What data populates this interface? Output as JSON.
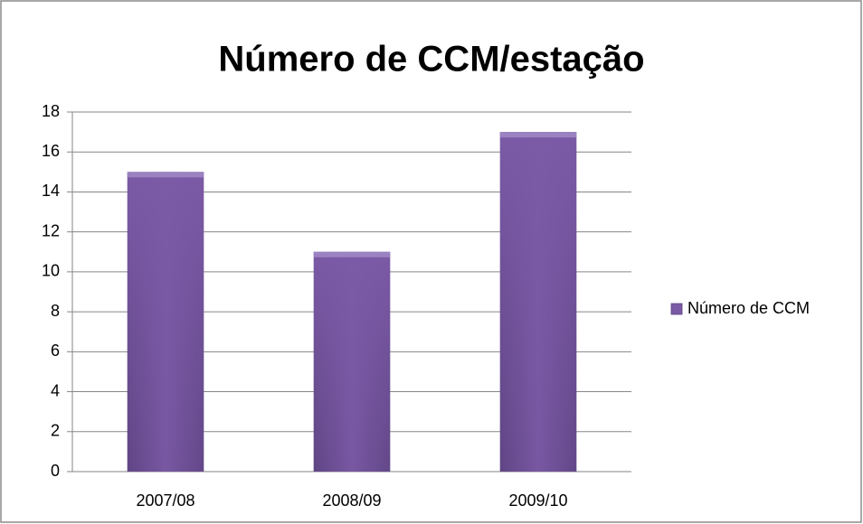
{
  "chart_data": {
    "type": "bar",
    "title": "Número de CCM/estação",
    "categories": [
      "2007/08",
      "2008/09",
      "2009/10"
    ],
    "series": [
      {
        "name": "Número de CCM",
        "color": "#7b5aa6",
        "values": [
          15,
          11,
          17
        ]
      }
    ],
    "ylim": [
      0,
      18
    ],
    "yticks": [
      0,
      2,
      4,
      6,
      8,
      10,
      12,
      14,
      16,
      18
    ],
    "grid": true,
    "legend": "right"
  }
}
